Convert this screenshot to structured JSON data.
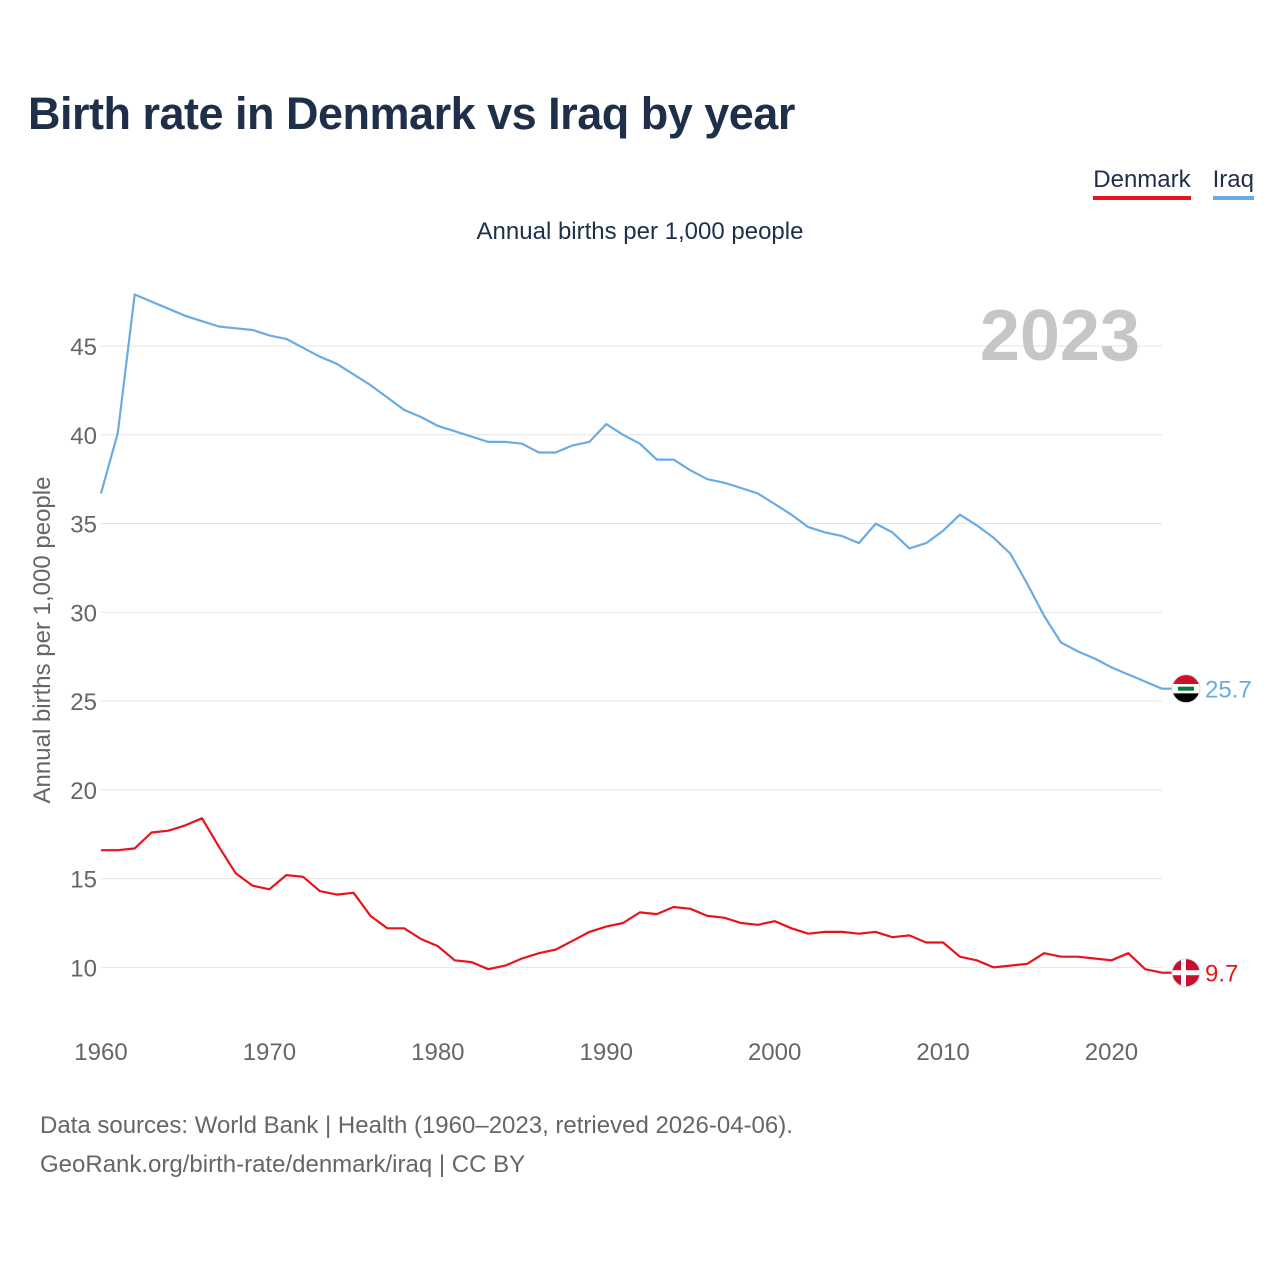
{
  "title": "Birth rate in Denmark vs Iraq by year",
  "subtitle": "Annual births per 1,000 people",
  "footer": {
    "line1": "Data sources: World Bank | Health (1960–2023, retrieved 2026-04-06).",
    "line2": "GeoRank.org/birth-rate/denmark/iraq | CC BY"
  },
  "chart_data": {
    "type": "line",
    "title": "Birth rate in Denmark vs Iraq by year",
    "ylabel": "Annual births per 1,000 people",
    "xlabel": "",
    "year_label": "2023",
    "xlim": [
      1960,
      2023
    ],
    "ylim": [
      7.6,
      49
    ],
    "x_ticks": [
      1960,
      1970,
      1980,
      1990,
      2000,
      2010,
      2020
    ],
    "y_ticks": [
      10,
      15,
      20,
      25,
      30,
      35,
      40,
      45
    ],
    "grid": true,
    "legend_position": "top-right",
    "x": [
      1960,
      1961,
      1962,
      1963,
      1964,
      1965,
      1966,
      1967,
      1968,
      1969,
      1970,
      1971,
      1972,
      1973,
      1974,
      1975,
      1976,
      1977,
      1978,
      1979,
      1980,
      1981,
      1982,
      1983,
      1984,
      1985,
      1986,
      1987,
      1988,
      1989,
      1990,
      1991,
      1992,
      1993,
      1994,
      1995,
      1996,
      1997,
      1998,
      1999,
      2000,
      2001,
      2002,
      2003,
      2004,
      2005,
      2006,
      2007,
      2008,
      2009,
      2010,
      2011,
      2012,
      2013,
      2014,
      2015,
      2016,
      2017,
      2018,
      2019,
      2020,
      2021,
      2022,
      2023
    ],
    "series": [
      {
        "name": "Denmark",
        "color": "#e8141b",
        "end_label": "9.7",
        "values": [
          16.6,
          16.6,
          16.7,
          17.6,
          17.7,
          18.0,
          18.4,
          16.8,
          15.3,
          14.6,
          14.4,
          15.2,
          15.1,
          14.3,
          14.1,
          14.2,
          12.9,
          12.2,
          12.2,
          11.6,
          11.2,
          10.4,
          10.3,
          9.9,
          10.1,
          10.5,
          10.8,
          11.0,
          11.5,
          12.0,
          12.3,
          12.5,
          13.1,
          13.0,
          13.4,
          13.3,
          12.9,
          12.8,
          12.5,
          12.4,
          12.6,
          12.2,
          11.9,
          12.0,
          12.0,
          11.9,
          12.0,
          11.7,
          11.8,
          11.4,
          11.4,
          10.6,
          10.4,
          10.0,
          10.1,
          10.2,
          10.8,
          10.6,
          10.6,
          10.5,
          10.4,
          10.8,
          9.9,
          9.7
        ]
      },
      {
        "name": "Iraq",
        "color": "#6aabe4",
        "end_label": "25.7",
        "values": [
          36.7,
          40.1,
          47.9,
          47.5,
          47.1,
          46.7,
          46.4,
          46.1,
          46.0,
          45.9,
          45.6,
          45.4,
          44.9,
          44.4,
          44.0,
          43.4,
          42.8,
          42.1,
          41.4,
          41.0,
          40.5,
          40.2,
          39.9,
          39.6,
          39.6,
          39.5,
          39.0,
          39.0,
          39.4,
          39.6,
          40.6,
          40.0,
          39.5,
          38.6,
          38.6,
          38.0,
          37.5,
          37.3,
          37.0,
          36.7,
          36.1,
          35.5,
          34.8,
          34.5,
          34.3,
          33.9,
          35.0,
          34.5,
          33.6,
          33.9,
          34.6,
          35.5,
          34.9,
          34.2,
          33.3,
          31.6,
          29.8,
          28.3,
          27.8,
          27.4,
          26.9,
          26.5,
          26.1,
          25.7
        ]
      }
    ]
  }
}
